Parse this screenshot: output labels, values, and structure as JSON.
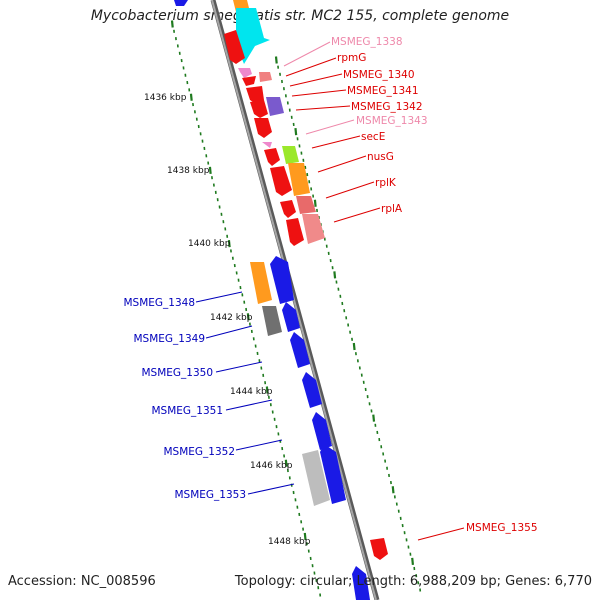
{
  "title": "Mycobacterium smegmatis str. MC2 155, complete genome",
  "accession": "Accession: NC_008596",
  "summary": "Topology: circular; Length: 6,988,209 bp; Genes: 6,770",
  "colors": {
    "backbone": "#808080",
    "tick": "#1f7a1f",
    "forward_label": "#dd0000",
    "reverse_label": "#0000bb",
    "pseudo_label": "#ee88aa"
  },
  "kbp_labels": [
    "1436 kbp",
    "1438 kbp",
    "1440 kbp",
    "1442 kbp",
    "1444 kbp",
    "1446 kbp",
    "1448 kbp"
  ],
  "forward_labels": [
    "MSMEG_1338",
    "rpmG",
    "MSMEG_1340",
    "MSMEG_1341",
    "MSMEG_1342",
    "MSMEG_1343",
    "secE",
    "nusG",
    "rplK",
    "rplA",
    "MSMEG_1355"
  ],
  "reverse_labels": [
    "MSMEG_1348",
    "MSMEG_1349",
    "MSMEG_1350",
    "MSMEG_1351",
    "MSMEG_1352",
    "MSMEG_1353"
  ]
}
